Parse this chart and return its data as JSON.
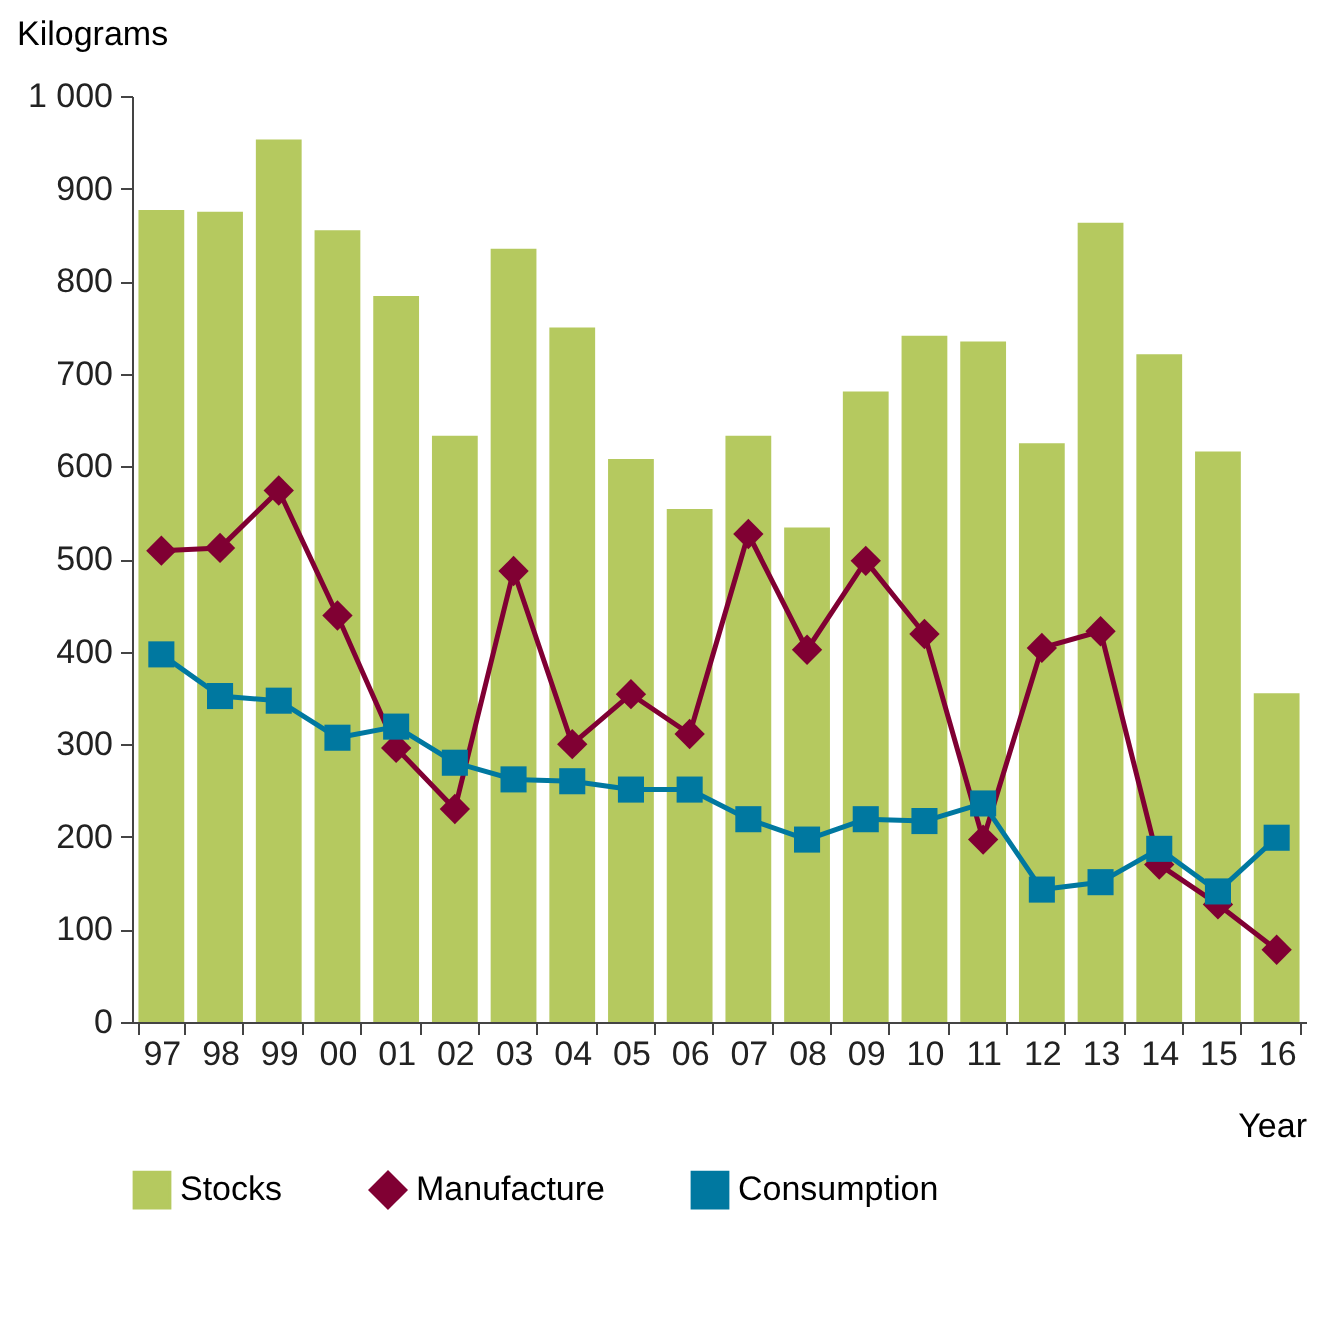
{
  "chart_data": {
    "type": "bar",
    "ylabel": "Kilograms",
    "xlabel": "Year",
    "categories": [
      "97",
      "98",
      "99",
      "00",
      "01",
      "02",
      "03",
      "04",
      "05",
      "06",
      "07",
      "08",
      "09",
      "10",
      "11",
      "12",
      "13",
      "14",
      "15",
      "16"
    ],
    "series": [
      {
        "name": "Stocks",
        "color": "#b5c95f",
        "values": [
          877,
          875,
          953,
          855,
          784,
          633,
          835,
          750,
          608,
          554,
          633,
          534,
          681,
          741,
          735,
          625,
          863,
          721,
          616,
          355
        ]
      },
      {
        "name": "Manufacture",
        "type": "line",
        "marker": "diamond",
        "color": "#800033",
        "values": [
          509,
          512,
          574,
          439,
          296,
          230,
          487,
          300,
          354,
          311,
          527,
          402,
          498,
          419,
          197,
          404,
          422,
          170,
          127,
          78
        ]
      },
      {
        "name": "Consumption",
        "type": "line",
        "marker": "square",
        "color": "#0078a0",
        "values": [
          397,
          352,
          347,
          307,
          319,
          280,
          262,
          260,
          251,
          251,
          219,
          197,
          219,
          217,
          236,
          143,
          151,
          187,
          141,
          199
        ]
      }
    ],
    "ylim": [
      0,
      1000
    ],
    "yticks": [
      0,
      100,
      200,
      300,
      400,
      500,
      600,
      700,
      800,
      900,
      {
        "value": 1000,
        "label": "1 000"
      }
    ],
    "legend": "bottom",
    "grid": false
  }
}
